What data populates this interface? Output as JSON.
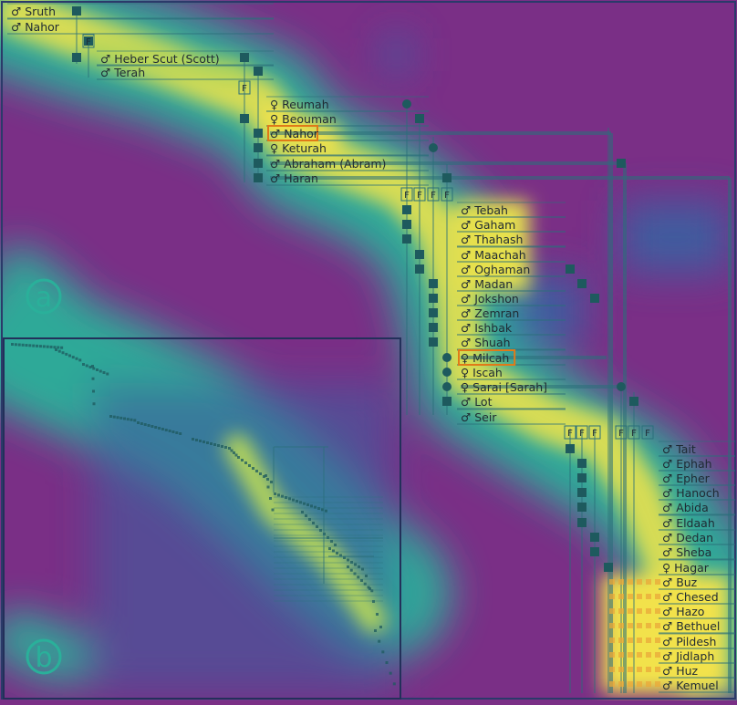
{
  "panels": {
    "a": {
      "label": "a"
    },
    "b": {
      "label": "b"
    }
  },
  "colors": {
    "background": "#7a2f86",
    "heat_low": "#3e5fa0",
    "heat_mid": "#2ab09a",
    "heat_high": "#f2e24b",
    "text": "#1f2a33",
    "grid": "#2a6f7a",
    "node": "#1e5a5e",
    "highlight": "#e07a18",
    "frame": "#2b3a6a"
  },
  "group_marker": "F",
  "people": [
    {
      "sym": "♂",
      "name": "Sruth"
    },
    {
      "sym": "♂",
      "name": "Nahor"
    },
    {
      "sym": "♂",
      "name": "Heber Scut (Scott)"
    },
    {
      "sym": "♂",
      "name": "Terah"
    },
    {
      "sym": "♀",
      "name": "Reumah"
    },
    {
      "sym": "♀",
      "name": "Beouman"
    },
    {
      "sym": "♂",
      "name": "Nahor",
      "highlight": true
    },
    {
      "sym": "♀",
      "name": "Keturah"
    },
    {
      "sym": "♂",
      "name": "Abraham (Abram)"
    },
    {
      "sym": "♂",
      "name": "Haran"
    },
    {
      "sym": "♂",
      "name": "Tebah"
    },
    {
      "sym": "♂",
      "name": "Gaham"
    },
    {
      "sym": "♂",
      "name": "Thahash"
    },
    {
      "sym": "♂",
      "name": "Maachah"
    },
    {
      "sym": "♂",
      "name": "Oghaman"
    },
    {
      "sym": "♂",
      "name": "Madan"
    },
    {
      "sym": "♂",
      "name": "Jokshon"
    },
    {
      "sym": "♂",
      "name": "Zemran"
    },
    {
      "sym": "♂",
      "name": "Ishbak"
    },
    {
      "sym": "♂",
      "name": "Shuah"
    },
    {
      "sym": "♀",
      "name": "Milcah",
      "highlight": true
    },
    {
      "sym": "♀",
      "name": "Iscah"
    },
    {
      "sym": "♀",
      "name": "Sarai [Sarah]"
    },
    {
      "sym": "♂",
      "name": "Lot"
    },
    {
      "sym": "♂",
      "name": "Seir"
    },
    {
      "sym": "♂",
      "name": "Tait"
    },
    {
      "sym": "♂",
      "name": "Ephah"
    },
    {
      "sym": "♂",
      "name": "Epher"
    },
    {
      "sym": "♂",
      "name": "Hanoch"
    },
    {
      "sym": "♂",
      "name": "Abida"
    },
    {
      "sym": "♂",
      "name": "Eldaah"
    },
    {
      "sym": "♂",
      "name": "Dedan"
    },
    {
      "sym": "♂",
      "name": "Sheba"
    },
    {
      "sym": "♀",
      "name": "Hagar"
    },
    {
      "sym": "♂",
      "name": "Buz"
    },
    {
      "sym": "♂",
      "name": "Chesed"
    },
    {
      "sym": "♂",
      "name": "Hazo"
    },
    {
      "sym": "♂",
      "name": "Bethuel"
    },
    {
      "sym": "♂",
      "name": "Pildesh"
    },
    {
      "sym": "♂",
      "name": "Jidlaph"
    },
    {
      "sym": "♂",
      "name": "Huz"
    },
    {
      "sym": "♂",
      "name": "Kemuel"
    }
  ]
}
